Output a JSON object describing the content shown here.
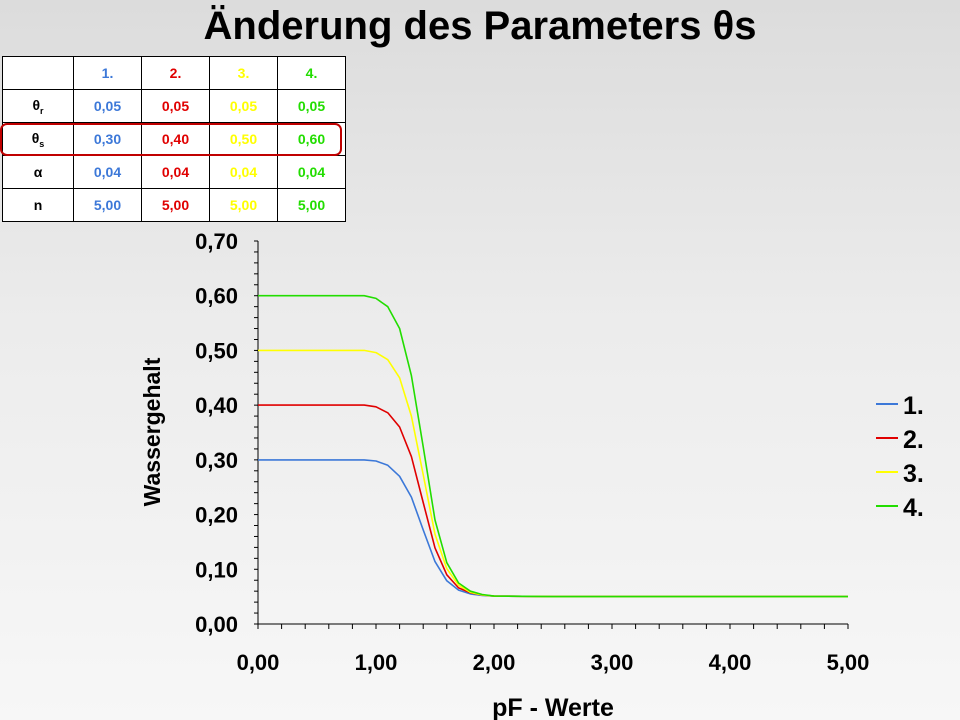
{
  "title": "Änderung des Parameters θs",
  "table": {
    "headers": [
      {
        "label": "1.",
        "color": "#3c78d8"
      },
      {
        "label": "2.",
        "color": "#e00000"
      },
      {
        "label": "3.",
        "color": "#ffff00"
      },
      {
        "label": "4.",
        "color": "#22dd00"
      }
    ],
    "rows": [
      {
        "symbol": "θ",
        "sub": "r",
        "values": [
          "0,05",
          "0,05",
          "0,05",
          "0,05"
        ]
      },
      {
        "symbol": "θ",
        "sub": "s",
        "values": [
          "0,30",
          "0,40",
          "0,50",
          "0,60"
        ]
      },
      {
        "symbol": "α",
        "sub": "",
        "values": [
          "0,04",
          "0,04",
          "0,04",
          "0,04"
        ]
      },
      {
        "symbol": "n",
        "sub": "",
        "values": [
          "5,00",
          "5,00",
          "5,00",
          "5,00"
        ]
      }
    ],
    "highlighted_row": "θs"
  },
  "chart_data": {
    "type": "line",
    "title": "",
    "xlabel": "pF - Werte",
    "ylabel": "Wassergehalt",
    "xlim": [
      0,
      5
    ],
    "ylim": [
      0,
      0.7
    ],
    "x_ticks": [
      "0,00",
      "1,00",
      "2,00",
      "3,00",
      "4,00",
      "5,00"
    ],
    "y_ticks": [
      "0,00",
      "0,10",
      "0,20",
      "0,30",
      "0,40",
      "0,50",
      "0,60",
      "0,70"
    ],
    "legend_position": "right",
    "series": [
      {
        "name": "1.",
        "color": "#3c78d8",
        "theta_r": 0.05,
        "theta_s": 0.3,
        "alpha": 0.04,
        "n": 5.0
      },
      {
        "name": "2.",
        "color": "#e00000",
        "theta_r": 0.05,
        "theta_s": 0.4,
        "alpha": 0.04,
        "n": 5.0
      },
      {
        "name": "3.",
        "color": "#ffff00",
        "theta_r": 0.05,
        "theta_s": 0.5,
        "alpha": 0.04,
        "n": 5.0
      },
      {
        "name": "4.",
        "color": "#22dd00",
        "theta_r": 0.05,
        "theta_s": 0.6,
        "alpha": 0.04,
        "n": 5.0
      }
    ],
    "x": [
      0.0,
      0.5,
      0.9,
      1.0,
      1.1,
      1.2,
      1.3,
      1.4,
      1.5,
      1.6,
      1.7,
      1.8,
      1.9,
      2.0,
      2.5,
      3.0,
      4.0,
      5.0
    ],
    "values": {
      "1.": [
        0.3,
        0.3,
        0.3,
        0.298,
        0.29,
        0.27,
        0.232,
        0.172,
        0.114,
        0.079,
        0.062,
        0.055,
        0.052,
        0.051,
        0.05,
        0.05,
        0.05,
        0.05
      ],
      "2.": [
        0.4,
        0.4,
        0.4,
        0.397,
        0.386,
        0.36,
        0.306,
        0.222,
        0.139,
        0.09,
        0.066,
        0.057,
        0.053,
        0.051,
        0.05,
        0.05,
        0.05,
        0.05
      ],
      "3.": [
        0.5,
        0.5,
        0.5,
        0.496,
        0.483,
        0.45,
        0.38,
        0.273,
        0.164,
        0.101,
        0.071,
        0.058,
        0.053,
        0.051,
        0.05,
        0.05,
        0.05,
        0.05
      ],
      "4.": [
        0.6,
        0.6,
        0.6,
        0.595,
        0.58,
        0.54,
        0.454,
        0.324,
        0.19,
        0.112,
        0.075,
        0.06,
        0.054,
        0.051,
        0.05,
        0.05,
        0.05,
        0.05
      ]
    }
  }
}
